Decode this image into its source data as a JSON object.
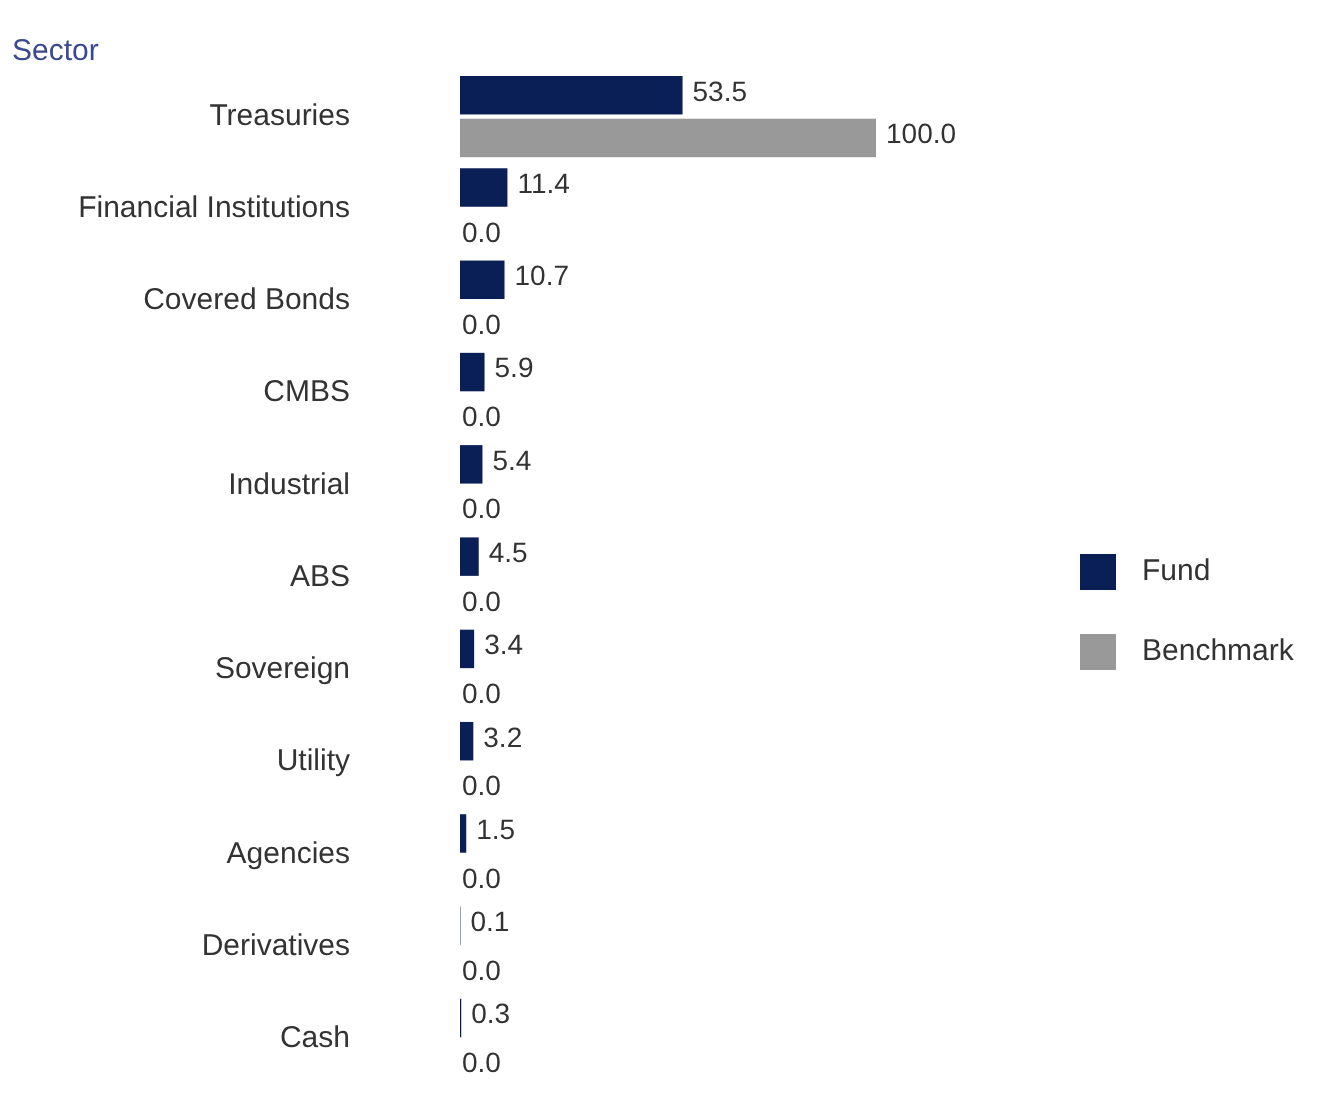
{
  "chart_data": {
    "type": "bar",
    "orientation": "horizontal",
    "title": "Sector",
    "categories": [
      "Treasuries",
      "Financial Institutions",
      "Covered Bonds",
      "CMBS",
      "Industrial",
      "ABS",
      "Sovereign",
      "Utility",
      "Agencies",
      "Derivatives",
      "Cash"
    ],
    "series": [
      {
        "name": "Fund",
        "color": "#0b1f57",
        "values": [
          53.5,
          11.4,
          10.7,
          5.9,
          5.4,
          4.5,
          3.4,
          3.2,
          1.5,
          0.1,
          0.3
        ],
        "value_labels": [
          "53.5",
          "11.4",
          "10.7",
          "5.9",
          "5.4",
          "4.5",
          "3.4",
          "3.2",
          "1.5",
          "0.1",
          "0.3"
        ]
      },
      {
        "name": "Benchmark",
        "color": "#999999",
        "values": [
          100.0,
          0.0,
          0.0,
          0.0,
          0.0,
          0.0,
          0.0,
          0.0,
          0.0,
          0.0,
          0.0
        ],
        "value_labels": [
          "100.0",
          "0.0",
          "0.0",
          "0.0",
          "0.0",
          "0.0",
          "0.0",
          "0.0",
          "0.0",
          "0.0",
          "0.0"
        ]
      }
    ],
    "legend": "right"
  }
}
